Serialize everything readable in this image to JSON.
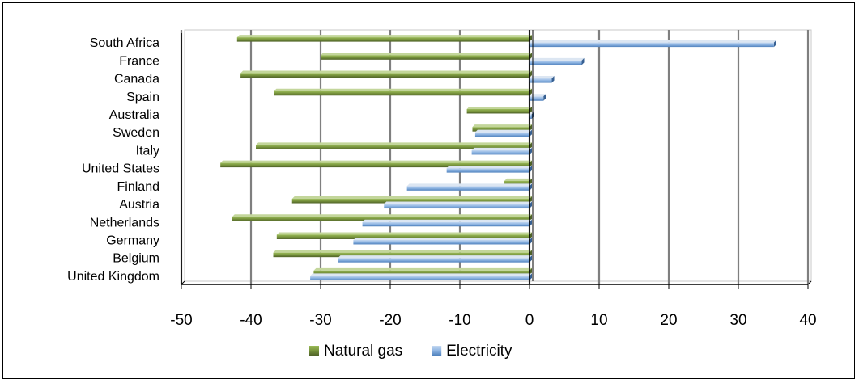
{
  "chart_data": {
    "type": "bar",
    "orientation": "horizontal",
    "categories": [
      "South Africa",
      "France",
      "Canada",
      "Spain",
      "Australia",
      "Sweden",
      "Italy",
      "United States",
      "Finland",
      "Austria",
      "Netherlands",
      "Germany",
      "Belgium",
      "United Kingdom"
    ],
    "series": [
      {
        "name": "Natural gas",
        "color": "#77933C",
        "values": [
          -42,
          -30,
          -41.5,
          -36.7,
          -9,
          -8.2,
          -39.3,
          -44.4,
          -3.6,
          -34.1,
          -42.7,
          -36.3,
          -36.8,
          -31
        ]
      },
      {
        "name": "Electricity",
        "color": "#8DB4E2",
        "values": [
          35.1,
          7.5,
          3.2,
          2,
          0.3,
          -7.8,
          -8.3,
          -11.9,
          -17.6,
          -20.9,
          -24,
          -25.3,
          -27.5,
          -31.5
        ]
      }
    ],
    "xlim": [
      -50,
      40
    ],
    "xticks": [
      "-50",
      "-40",
      "-30",
      "-20",
      "-10",
      "0",
      "10",
      "20",
      "30",
      "40"
    ],
    "grid": "vertical",
    "legend": "bottom",
    "title": "",
    "xlabel": "",
    "ylabel": ""
  }
}
